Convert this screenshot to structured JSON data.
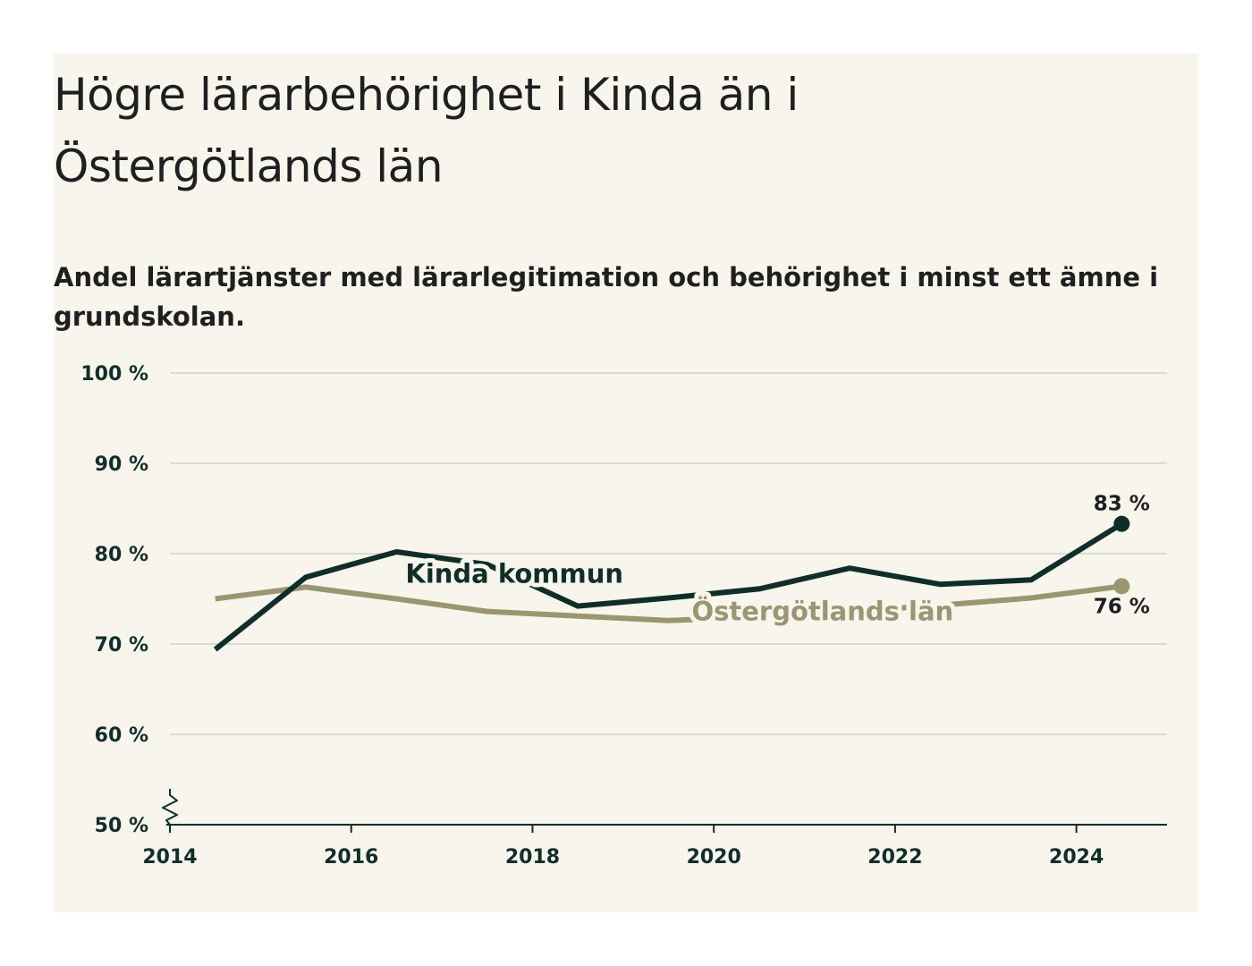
{
  "title": "Högre lärarbehörighet i Kinda än i Östergötlands län",
  "subtitle": "Andel lärartjänster med lärarlegitimation och behörighet i minst ett ämne i grundskolan.",
  "colors": {
    "background": "#f7f5ec",
    "kinda": "#0f2e2a",
    "lan": "#9b9670",
    "grid": "#dcdad3",
    "axis": "#0f2e2a"
  },
  "chart_data": {
    "type": "line",
    "title": "Högre lärarbehörighet i Kinda än i Östergötlands län",
    "subtitle": "Andel lärartjänster med lärarlegitimation och behörighet i minst ett ämne i grundskolan.",
    "xlim": [
      2014,
      2025
    ],
    "ylim": [
      50,
      100
    ],
    "x_ticks": [
      2014,
      2016,
      2018,
      2020,
      2022,
      2024
    ],
    "x_tick_labels": [
      "2014",
      "2016",
      "2018",
      "2020",
      "2022",
      "2024"
    ],
    "y_ticks": [
      50,
      60,
      70,
      80,
      90,
      100
    ],
    "y_tick_labels": [
      "50 %",
      "60 %",
      "70 %",
      "80 %",
      "90 %",
      "100 %"
    ],
    "y_axis_break": true,
    "grid": true,
    "x": [
      2014.5,
      2015.5,
      2016.5,
      2017.5,
      2018.5,
      2019.5,
      2020.5,
      2021.5,
      2022.5,
      2023.5,
      2024.5
    ],
    "series": [
      {
        "name": "Kinda kommun",
        "color": "#0f2e2a",
        "values": [
          69.4,
          77.4,
          80.2,
          78.8,
          74.2,
          75.1,
          76.1,
          78.4,
          76.6,
          77.1,
          83.3
        ],
        "end_label": "83 %"
      },
      {
        "name": "Östergötlands län",
        "color": "#9b9670",
        "values": [
          75.0,
          76.3,
          75.0,
          73.6,
          73.1,
          72.6,
          73.0,
          73.6,
          74.3,
          75.1,
          76.4
        ],
        "end_label": "76 %"
      }
    ]
  }
}
